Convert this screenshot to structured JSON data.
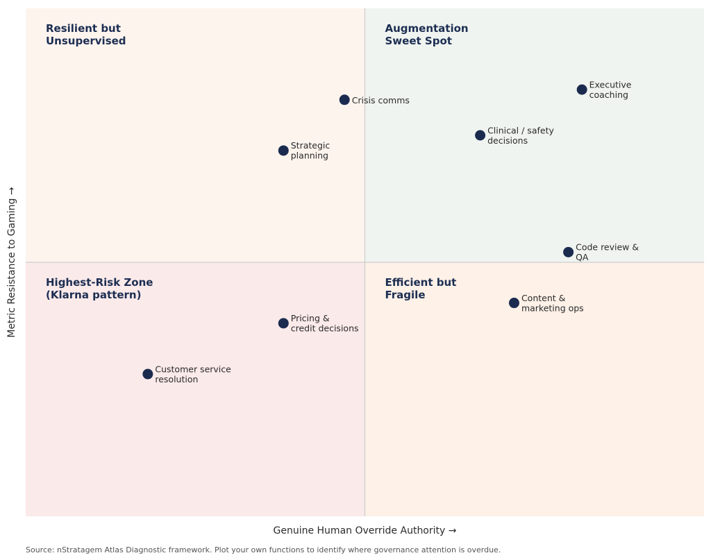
{
  "chart_data": {
    "type": "scatter",
    "title": "",
    "xlabel": "Genuine Human Override Authority  →",
    "ylabel": "Metric Resistance to Gaming  →",
    "xlim": [
      0,
      10
    ],
    "ylim": [
      0,
      10
    ],
    "grid": false,
    "divider": {
      "x": 5,
      "y": 5,
      "color": "#cccccc"
    },
    "quadrants": [
      {
        "position": "top-left",
        "title_lines": [
          "Resilient but",
          "Unsupervised"
        ],
        "color": "#fdf4ee"
      },
      {
        "position": "top-right",
        "title_lines": [
          "Augmentation",
          "Sweet Spot"
        ],
        "color": "#f0f4f0"
      },
      {
        "position": "bottom-left",
        "title_lines": [
          "Highest-Risk Zone",
          "(Klarna pattern)"
        ],
        "color": "#fbeaea"
      },
      {
        "position": "bottom-right",
        "title_lines": [
          "Efficient but",
          "Fragile"
        ],
        "color": "#fdf1e8"
      }
    ],
    "marker_color": "#1b2b4f",
    "points": [
      {
        "label_lines": [
          "Crisis comms"
        ],
        "x": 4.7,
        "y": 8.2
      },
      {
        "label_lines": [
          "Strategic",
          "planning"
        ],
        "x": 3.8,
        "y": 7.2
      },
      {
        "label_lines": [
          "Executive",
          "coaching"
        ],
        "x": 8.2,
        "y": 8.4
      },
      {
        "label_lines": [
          "Clinical / safety",
          "decisions"
        ],
        "x": 6.7,
        "y": 7.5
      },
      {
        "label_lines": [
          "Code review &",
          "QA"
        ],
        "x": 8.0,
        "y": 5.2
      },
      {
        "label_lines": [
          "Content &",
          "marketing ops"
        ],
        "x": 7.2,
        "y": 4.2
      },
      {
        "label_lines": [
          "Pricing &",
          "credit decisions"
        ],
        "x": 3.8,
        "y": 3.8
      },
      {
        "label_lines": [
          "Customer service",
          "resolution"
        ],
        "x": 1.8,
        "y": 2.8
      }
    ]
  },
  "source": "Source: nStratagem Atlas Diagnostic framework. Plot your own functions to identify where governance attention is overdue."
}
